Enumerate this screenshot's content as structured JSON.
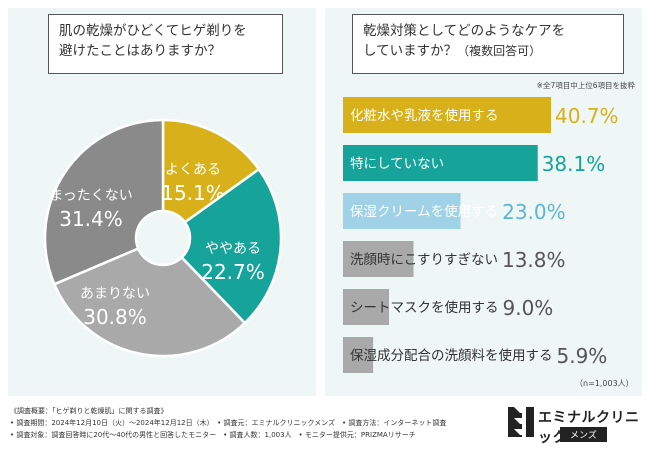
{
  "left": {
    "question_line1": "肌の乾燥がひどくてヒゲ剃りを",
    "question_line2": "避けたことはありますか？"
  },
  "right": {
    "question_line1": "乾燥対策としてどのようなケアを",
    "question_line2_main": "していますか？",
    "question_line2_sub": "（複数回答可）",
    "note": "※全7項目中上位6項目を抜粋",
    "n_note": "（n=1,003人）"
  },
  "footer": {
    "line1": "《調査概要：「ヒゲ剃りと乾燥肌」に関する調査》",
    "line2": "• 調査期間：2024年12月10日（火）〜2024年12月12日（木）　• 調査元：エミナルクリニックメンズ　• 調査方法：インターネット調査",
    "line3": "• 調査対象：調査回答時に20代〜40代の男性と回答したモニター　• 調査人数：1,003人　• モニター提供元：PRIZMAリサーチ"
  },
  "logo": {
    "name": "エミナルクリニック",
    "sub": "メンズ"
  },
  "colors": {
    "yellow": "#d8b11a",
    "teal": "#15a39a",
    "light_blue": "#9fd2e6",
    "gray_light": "#a9a9a9",
    "gray_dark": "#8a8a8a",
    "panel_bg": "#eff7f6"
  },
  "chart_data": [
    {
      "type": "pie",
      "donut": true,
      "labels": [
        "よくある",
        "ややある",
        "あまりない",
        "まったくない"
      ],
      "values": [
        15.1,
        22.7,
        30.8,
        31.4
      ],
      "value_labels": [
        "15.1%",
        "22.7%",
        "30.8%",
        "31.4%"
      ],
      "colors": [
        "#d8b11a",
        "#15a39a",
        "#a9a9a9",
        "#8a8a8a"
      ],
      "start": "12 o'clock, clockwise"
    },
    {
      "type": "bar",
      "orientation": "horizontal",
      "categories": [
        "化粧水や乳液を使用する",
        "特にしていない",
        "保湿クリームを使用する",
        "洗顔時にこすりすぎない",
        "シートマスクを使用する",
        "保湿成分配合の洗顔料を使用する"
      ],
      "values": [
        40.7,
        38.1,
        23.0,
        13.8,
        9.0,
        5.9
      ],
      "value_labels": [
        "40.7%",
        "38.1%",
        "23.0%",
        "13.8%",
        "9.0%",
        "5.9%"
      ],
      "colors": [
        "#d8b11a",
        "#15a39a",
        "#9fd2e6",
        "#a9a9a9",
        "#a9a9a9",
        "#a9a9a9"
      ],
      "label_colors": [
        "#ffffff",
        "#ffffff",
        "#ffffff",
        "#333333",
        "#333333",
        "#333333"
      ],
      "value_colors": [
        "#d8b11a",
        "#15a39a",
        "#5fb4d6",
        "#555555",
        "#555555",
        "#555555"
      ],
      "xlim": [
        0,
        40.7
      ]
    }
  ]
}
